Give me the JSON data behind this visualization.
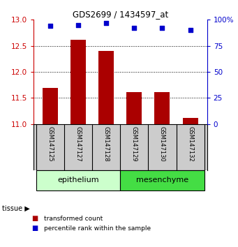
{
  "title": "GDS2699 / 1434597_at",
  "samples": [
    "GSM147125",
    "GSM147127",
    "GSM147128",
    "GSM147129",
    "GSM147130",
    "GSM147132"
  ],
  "bar_values": [
    11.7,
    12.61,
    12.4,
    11.61,
    11.62,
    11.12
  ],
  "percentile_values": [
    94,
    95,
    97,
    92,
    92,
    90
  ],
  "bar_color": "#aa0000",
  "dot_color": "#0000cc",
  "ylim_left": [
    11,
    13
  ],
  "ylim_right": [
    0,
    100
  ],
  "yticks_left": [
    11,
    11.5,
    12,
    12.5,
    13
  ],
  "yticks_right": [
    0,
    25,
    50,
    75,
    100
  ],
  "ytick_labels_right": [
    "0",
    "25",
    "50",
    "75",
    "100%"
  ],
  "group1_label": "epithelium",
  "group2_label": "mesenchyme",
  "group1_color": "#ccffcc",
  "group2_color": "#44dd44",
  "group1_count": 3,
  "group2_count": 3,
  "tissue_label": "tissue",
  "legend_bar_label": "transformed count",
  "legend_dot_label": "percentile rank within the sample",
  "background_color": "#ffffff",
  "sample_box_color": "#cccccc",
  "left_tick_color": "#cc0000",
  "right_tick_color": "#0000cc"
}
